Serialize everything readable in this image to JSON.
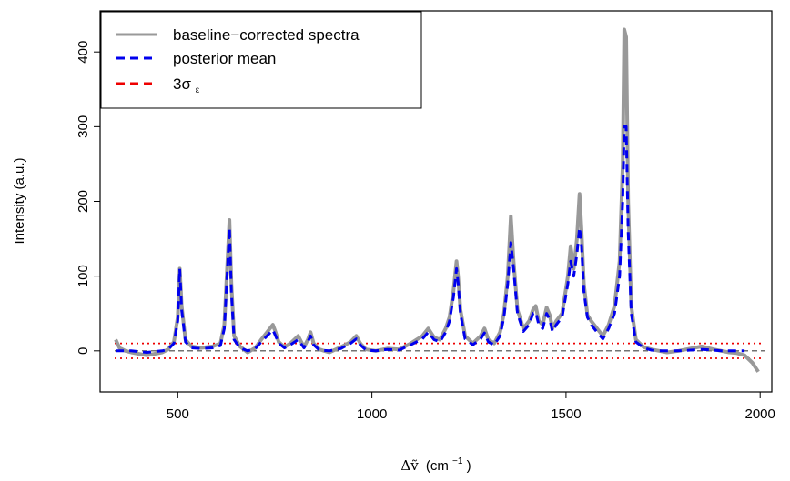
{
  "chart_data": {
    "type": "line",
    "xlabel_symbol": "Δṽ",
    "xlabel_unit": "(cm",
    "xlabel_exp": "−1",
    "xlabel_close": ")",
    "ylabel": "Intensity (a.u.)",
    "xlim": [
      300,
      2030
    ],
    "ylim": [
      -55,
      455
    ],
    "x_ticks": [
      500,
      1000,
      1500,
      2000
    ],
    "y_ticks": [
      0,
      100,
      200,
      300,
      400
    ],
    "x_tick_labels": [
      "500",
      "1000",
      "1500",
      "2000"
    ],
    "y_tick_labels": [
      "0",
      "100",
      "200",
      "300",
      "400"
    ],
    "legend_position": "top-left",
    "legend": [
      {
        "label": "baseline−corrected spectra",
        "color": "#999999",
        "style": "solid"
      },
      {
        "label": "posterior mean",
        "color": "#0000ee",
        "style": "dashed"
      },
      {
        "label": "3σ",
        "label_sub": "ε",
        "color": "#ee0000",
        "style": "dashed"
      }
    ],
    "reference_lines": [
      {
        "y": 0,
        "color": "#444444",
        "style": "dashed"
      },
      {
        "y": 10,
        "color": "#ee0000",
        "style": "dotted"
      },
      {
        "y": -10,
        "color": "#ee0000",
        "style": "dotted"
      }
    ],
    "series": [
      {
        "name": "baseline−corrected spectra",
        "color": "#999999",
        "x": [
          340,
          350,
          365,
          380,
          400,
          420,
          440,
          460,
          475,
          490,
          500,
          505,
          510,
          520,
          535,
          560,
          590,
          610,
          620,
          628,
          633,
          638,
          645,
          660,
          680,
          700,
          715,
          730,
          745,
          752,
          760,
          775,
          790,
          810,
          825,
          835,
          842,
          850,
          865,
          890,
          920,
          945,
          960,
          970,
          985,
          1010,
          1040,
          1070,
          1100,
          1130,
          1145,
          1160,
          1175,
          1190,
          1200,
          1210,
          1218,
          1222,
          1228,
          1240,
          1260,
          1280,
          1290,
          1300,
          1315,
          1330,
          1340,
          1350,
          1358,
          1365,
          1375,
          1390,
          1405,
          1415,
          1422,
          1430,
          1440,
          1450,
          1458,
          1465,
          1475,
          1490,
          1505,
          1512,
          1520,
          1528,
          1535,
          1540,
          1546,
          1555,
          1565,
          1580,
          1595,
          1610,
          1625,
          1638,
          1646,
          1650,
          1655,
          1660,
          1668,
          1680,
          1700,
          1720,
          1740,
          1760,
          1790,
          1820,
          1850,
          1880,
          1900,
          1920,
          1940,
          1960,
          1980,
          1995
        ],
        "y": [
          15,
          4,
          0,
          -2,
          -4,
          -6,
          -4,
          -2,
          2,
          12,
          45,
          110,
          60,
          15,
          6,
          4,
          6,
          10,
          35,
          120,
          175,
          90,
          20,
          6,
          -2,
          4,
          15,
          25,
          35,
          25,
          12,
          5,
          10,
          20,
          5,
          15,
          25,
          10,
          2,
          -2,
          5,
          12,
          20,
          10,
          2,
          0,
          3,
          2,
          10,
          20,
          30,
          18,
          15,
          30,
          45,
          80,
          120,
          100,
          55,
          20,
          10,
          20,
          30,
          15,
          10,
          25,
          50,
          100,
          180,
          120,
          55,
          30,
          40,
          55,
          60,
          40,
          35,
          58,
          48,
          30,
          40,
          50,
          100,
          140,
          110,
          150,
          210,
          160,
          90,
          48,
          40,
          30,
          20,
          35,
          60,
          120,
          250,
          430,
          420,
          200,
          60,
          15,
          5,
          2,
          0,
          -2,
          0,
          3,
          6,
          2,
          0,
          -2,
          -3,
          -6,
          -16,
          -28
        ]
      },
      {
        "name": "posterior mean",
        "color": "#0000ee",
        "x": [
          340,
          350,
          365,
          380,
          400,
          420,
          440,
          460,
          475,
          490,
          500,
          505,
          510,
          520,
          535,
          560,
          590,
          610,
          620,
          628,
          633,
          638,
          645,
          660,
          680,
          700,
          715,
          730,
          745,
          752,
          760,
          775,
          790,
          810,
          825,
          835,
          842,
          850,
          865,
          890,
          920,
          945,
          960,
          970,
          985,
          1010,
          1040,
          1070,
          1100,
          1130,
          1145,
          1160,
          1175,
          1190,
          1200,
          1210,
          1218,
          1222,
          1228,
          1240,
          1260,
          1280,
          1290,
          1300,
          1315,
          1330,
          1340,
          1350,
          1358,
          1365,
          1375,
          1390,
          1405,
          1415,
          1422,
          1430,
          1440,
          1450,
          1458,
          1465,
          1475,
          1490,
          1505,
          1512,
          1520,
          1528,
          1535,
          1540,
          1546,
          1555,
          1565,
          1580,
          1595,
          1610,
          1625,
          1638,
          1646,
          1650,
          1655,
          1660,
          1668,
          1680,
          1700,
          1720,
          1740,
          1760,
          1790,
          1820,
          1850,
          1880,
          1900,
          1920,
          1940,
          1960
        ],
        "y": [
          0,
          0,
          0,
          0,
          -1,
          -2,
          -1,
          0,
          2,
          10,
          40,
          110,
          55,
          12,
          4,
          3,
          4,
          7,
          30,
          110,
          165,
          80,
          15,
          4,
          0,
          3,
          12,
          20,
          28,
          20,
          10,
          4,
          8,
          15,
          4,
          12,
          20,
          8,
          1,
          0,
          3,
          10,
          16,
          8,
          1,
          0,
          2,
          1,
          8,
          16,
          25,
          15,
          12,
          25,
          40,
          72,
          110,
          92,
          50,
          16,
          8,
          16,
          24,
          12,
          8,
          20,
          45,
          90,
          145,
          110,
          50,
          26,
          35,
          50,
          52,
          35,
          30,
          50,
          42,
          26,
          35,
          45,
          90,
          120,
          100,
          130,
          165,
          140,
          80,
          45,
          35,
          25,
          16,
          30,
          50,
          100,
          200,
          300,
          300,
          160,
          50,
          12,
          4,
          1,
          0,
          0,
          0,
          1,
          2,
          1,
          0,
          0,
          0,
          0
        ]
      }
    ]
  }
}
